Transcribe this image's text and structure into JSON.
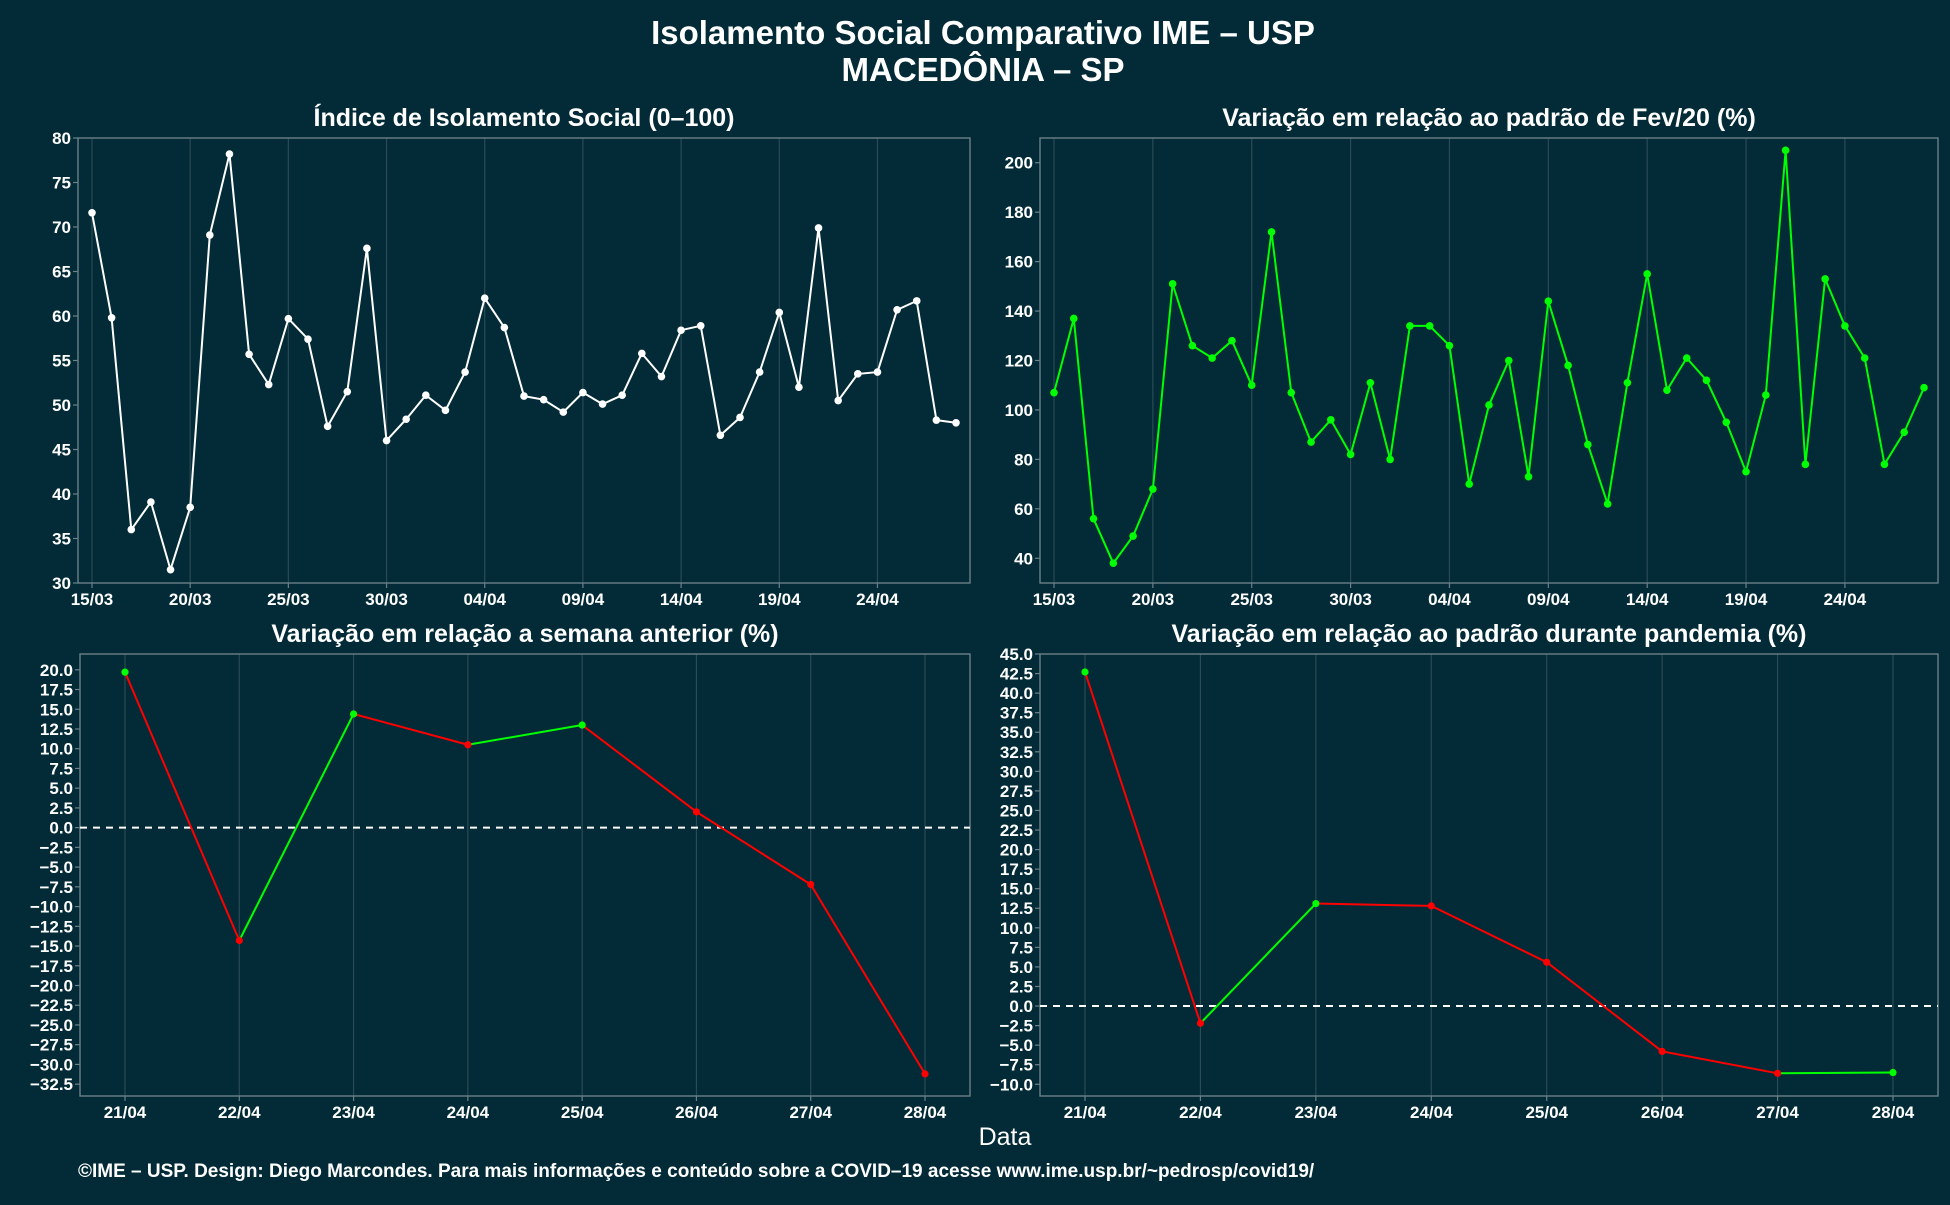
{
  "title_line1": "Isolamento Social Comparativo IME – USP",
  "title_line2": "MACEDÔNIA – SP",
  "x_axis_label": "Data",
  "footer": "©IME – USP. Design: Diego Marcondes. Para mais informações e conteúdo sobre a COVID–19 acesse www.ime.usp.br/~pedrosp/covid19/",
  "colors": {
    "background": "#022b37",
    "white_line": "#ffffff",
    "green": "#00ff00",
    "red": "#ff0000",
    "grid": "#2b4a55",
    "frame": "#6b8088"
  },
  "chart_data": [
    {
      "type": "line",
      "title": "Índice de Isolamento Social (0–100)",
      "x": [
        "15/03",
        "16/03",
        "17/03",
        "18/03",
        "19/03",
        "20/03",
        "21/03",
        "22/03",
        "23/03",
        "24/03",
        "25/03",
        "26/03",
        "27/03",
        "28/03",
        "29/03",
        "30/03",
        "31/03",
        "01/04",
        "02/04",
        "03/04",
        "04/04",
        "05/04",
        "06/04",
        "07/04",
        "08/04",
        "09/04",
        "10/04",
        "11/04",
        "12/04",
        "13/04",
        "14/04",
        "15/04",
        "16/04",
        "17/04",
        "18/04",
        "19/04",
        "20/04",
        "21/04",
        "22/04",
        "23/04",
        "24/04",
        "25/04",
        "26/04",
        "27/04",
        "28/04"
      ],
      "x_ticks": [
        "15/03",
        "20/03",
        "25/03",
        "30/03",
        "04/04",
        "09/04",
        "14/04",
        "19/04",
        "24/04"
      ],
      "series": [
        {
          "color": "#ffffff",
          "values": [
            71.6,
            59.8,
            36.0,
            39.1,
            31.5,
            38.5,
            69.1,
            78.2,
            55.7,
            52.3,
            59.7,
            57.4,
            47.6,
            51.5,
            67.6,
            46.0,
            48.4,
            51.1,
            49.4,
            53.7,
            62.0,
            58.7,
            51.0,
            50.6,
            49.2,
            51.4,
            50.1,
            51.1,
            55.8,
            53.2,
            58.4,
            58.9,
            46.6,
            48.6,
            53.7,
            60.4,
            52.0,
            69.9,
            50.5,
            53.5,
            53.7,
            60.7,
            61.7,
            48.3,
            48.0
          ]
        }
      ],
      "ylim": [
        30,
        80
      ],
      "y_ticks": [
        30,
        35,
        40,
        45,
        50,
        55,
        60,
        65,
        70,
        75,
        80
      ]
    },
    {
      "type": "line",
      "title": "Variação em relação ao padrão de Fev/20 (%)",
      "x": [
        "15/03",
        "16/03",
        "17/03",
        "18/03",
        "19/03",
        "20/03",
        "21/03",
        "22/03",
        "23/03",
        "24/03",
        "25/03",
        "26/03",
        "27/03",
        "28/03",
        "29/03",
        "30/03",
        "31/03",
        "01/04",
        "02/04",
        "03/04",
        "04/04",
        "05/04",
        "06/04",
        "07/04",
        "08/04",
        "09/04",
        "10/04",
        "11/04",
        "12/04",
        "13/04",
        "14/04",
        "15/04",
        "16/04",
        "17/04",
        "18/04",
        "19/04",
        "20/04",
        "21/04",
        "22/04",
        "23/04",
        "24/04",
        "25/04",
        "26/04",
        "27/04",
        "28/04"
      ],
      "x_ticks": [
        "15/03",
        "20/03",
        "25/03",
        "30/03",
        "04/04",
        "09/04",
        "14/04",
        "19/04",
        "24/04"
      ],
      "series": [
        {
          "color": "#00ff00",
          "values": [
            107,
            137,
            56,
            38,
            49,
            68,
            151,
            126,
            121,
            128,
            110,
            172,
            107,
            87,
            96,
            82,
            111,
            80,
            134,
            134,
            126,
            70,
            102,
            120,
            73,
            144,
            118,
            86,
            62,
            111,
            155,
            108,
            121,
            112,
            95,
            75,
            106,
            205,
            78,
            153,
            134,
            121,
            78,
            91,
            109
          ]
        }
      ],
      "ylim": [
        30,
        210
      ],
      "y_ticks": [
        40,
        60,
        80,
        100,
        120,
        140,
        160,
        180,
        200
      ]
    },
    {
      "type": "line",
      "title": "Variação em relação a semana anterior (%)",
      "categories": [
        "21/04",
        "22/04",
        "23/04",
        "24/04",
        "25/04",
        "26/04",
        "27/04",
        "28/04"
      ],
      "series": [
        {
          "values": [
            19.7,
            -14.3,
            14.4,
            10.5,
            13.0,
            2.0,
            -7.2,
            -31.2
          ]
        }
      ],
      "positive_color": "#00ff00",
      "negative_color": "#ff0000",
      "reference_line": 0,
      "ylim": [
        -34,
        22
      ],
      "y_ticks": [
        -32.5,
        -30,
        -27.5,
        -25,
        -22.5,
        -20,
        -17.5,
        -15,
        -12.5,
        -10,
        -7.5,
        -5,
        -2.5,
        0,
        2.5,
        5,
        7.5,
        10,
        12.5,
        15,
        17.5,
        20
      ]
    },
    {
      "type": "line",
      "title": "Variação em relação ao padrão durante pandemia (%)",
      "categories": [
        "21/04",
        "22/04",
        "23/04",
        "24/04",
        "25/04",
        "26/04",
        "27/04",
        "28/04"
      ],
      "series": [
        {
          "values": [
            42.7,
            -2.2,
            13.1,
            12.8,
            5.6,
            -5.8,
            -8.6,
            -8.5
          ]
        }
      ],
      "positive_color": "#00ff00",
      "negative_color": "#ff0000",
      "reference_line": 0,
      "ylim": [
        -11.5,
        45
      ],
      "y_ticks": [
        -10,
        -7.5,
        -5,
        -2.5,
        0,
        2.5,
        5,
        7.5,
        10,
        12.5,
        15,
        17.5,
        20,
        22.5,
        25,
        27.5,
        30,
        32.5,
        35,
        37.5,
        40,
        42.5,
        45
      ]
    }
  ]
}
